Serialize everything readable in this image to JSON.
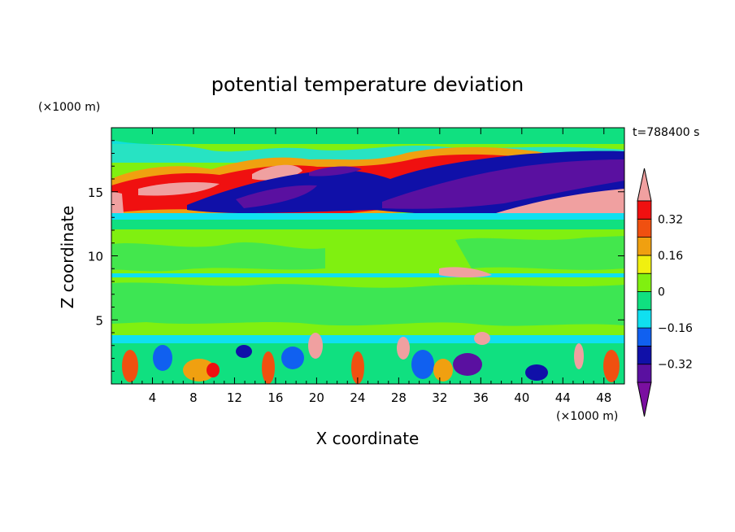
{
  "chart_data": {
    "type": "heatmap",
    "title": "potential temperature deviation",
    "time_label": "t=788400 s",
    "xlabel": "X coordinate",
    "ylabel": "Z coordinate",
    "x_unit": "(×1000 m)",
    "y_unit": "(×1000 m)",
    "xlim": [
      0,
      50
    ],
    "ylim": [
      0,
      20
    ],
    "x_ticks": [
      4,
      8,
      12,
      16,
      20,
      24,
      28,
      32,
      36,
      40,
      44,
      48
    ],
    "y_ticks": [
      5,
      10,
      15
    ],
    "colorbar": {
      "levels": [
        -0.4,
        -0.32,
        -0.24,
        -0.16,
        -0.08,
        0,
        0.08,
        0.16,
        0.24,
        0.32,
        0.4
      ],
      "labels": [
        "0.32",
        "0.16",
        "0",
        "−0.16",
        "−0.32"
      ],
      "label_values": [
        0.32,
        0.16,
        0,
        -0.16,
        -0.32
      ],
      "colors": [
        "#7a0fa0",
        "#5a10a0",
        "#1010a8",
        "#1060f0",
        "#10e0f0",
        "#10e080",
        "#80f010",
        "#f0f010",
        "#f0a010",
        "#f05010",
        "#f01010",
        "#f0a0a0"
      ]
    }
  }
}
